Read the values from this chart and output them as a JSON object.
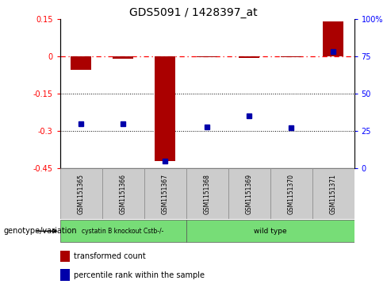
{
  "title": "GDS5091 / 1428397_at",
  "samples": [
    "GSM1151365",
    "GSM1151366",
    "GSM1151367",
    "GSM1151368",
    "GSM1151369",
    "GSM1151370",
    "GSM1151371"
  ],
  "transformed_count": [
    -0.055,
    -0.01,
    -0.42,
    -0.005,
    -0.008,
    -0.005,
    0.14
  ],
  "percentile_rank": [
    30,
    30,
    5,
    28,
    35,
    27,
    78
  ],
  "group1_label": "cystatin B knockout Cstb-/-",
  "group1_samples": 3,
  "group2_label": "wild type",
  "group2_samples": 4,
  "group_color": "#77DD77",
  "ylim_left": [
    -0.45,
    0.15
  ],
  "ylim_right": [
    0,
    100
  ],
  "yticks_left": [
    0.15,
    0.0,
    -0.15,
    -0.3,
    -0.45
  ],
  "ytick_labels_left": [
    "0.15",
    "0",
    "-0.15",
    "-0.3",
    "-0.45"
  ],
  "yticks_right": [
    100,
    75,
    50,
    25,
    0
  ],
  "ytick_labels_right": [
    "100%",
    "75",
    "50",
    "25",
    "0"
  ],
  "hline_y": 0.0,
  "dotted_lines": [
    -0.15,
    -0.3
  ],
  "bar_color": "#AA0000",
  "scatter_color": "#0000AA",
  "legend_bar_label": "transformed count",
  "legend_scatter_label": "percentile rank within the sample",
  "genotype_label": "genotype/variation",
  "background_color": "#ffffff",
  "plot_bg": "#ffffff",
  "bar_width": 0.5,
  "sample_box_color": "#cccccc",
  "n_samples": 7
}
